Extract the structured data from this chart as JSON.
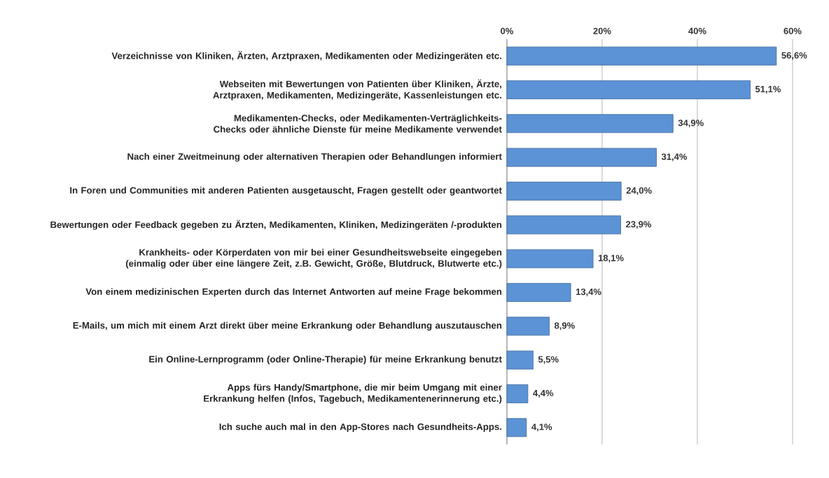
{
  "chart_data": {
    "type": "bar",
    "orientation": "horizontal",
    "categories": [
      "Verzeichnisse von Kliniken, Ärzten, Arztpraxen, Medikamenten oder Medizingeräten etc.",
      "Webseiten mit Bewertungen von Patienten über Kliniken, Ärzte, Arztpraxen, Medikamenten, Medizingeräte, Kassenleistungen etc.",
      "Medikamenten-Checks, oder Medikamenten-Verträglichkeits-Checks oder ähnliche Dienste für meine Medikamente verwendet",
      "Nach einer Zweitmeinung oder alternativen Therapien oder Behandlungen informiert",
      "In Foren und Communities mit anderen Patienten ausgetauscht, Fragen gestellt oder geantwortet",
      "Bewertungen oder Feedback gegeben zu Ärzten, Medikamenten, Kliniken, Medizingeräten /-produkten",
      "Krankheits- oder Körperdaten von mir bei einer Gesundheitswebseite eingegeben (einmalig oder über eine längere Zeit, z.B. Gewicht, Größe, Blutdruck, Blutwerte etc.)",
      "Von einem medizinischen Experten durch das Internet Antworten auf meine Frage bekommen",
      "E-Mails, um mich mit einem Arzt direkt über meine Erkrankung oder Behandlung auszutauschen",
      "Ein Online-Lernprogramm (oder Online-Therapie) für meine Erkrankung benutzt",
      "Apps fürs Handy/Smartphone, die mir beim Umgang mit einer Erkrankung helfen (Infos, Tagebuch, Medikamentenerinnerung etc.)",
      "Ich suche auch mal in den App-Stores nach Gesundheits-Apps."
    ],
    "values": [
      56.6,
      51.1,
      34.9,
      31.4,
      24.0,
      23.9,
      18.1,
      13.4,
      8.9,
      5.5,
      4.4,
      4.1
    ],
    "value_labels": [
      "56,6%",
      "51,1%",
      "34,9%",
      "31,4%",
      "24,0%",
      "23,9%",
      "18,1%",
      "13,4%",
      "8,9%",
      "5,5%",
      "4,4%",
      "4,1%"
    ],
    "color": "#5b93d6",
    "xlim": [
      0,
      60
    ],
    "xticks": [
      {
        "value": 0,
        "label": "0%"
      },
      {
        "value": 20,
        "label": "20%"
      },
      {
        "value": 40,
        "label": "40%"
      },
      {
        "value": 60,
        "label": "60%"
      }
    ],
    "grid": "x"
  }
}
